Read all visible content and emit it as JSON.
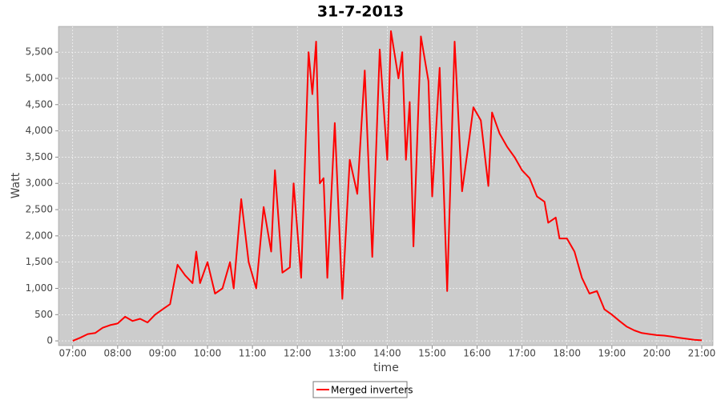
{
  "chart_data": {
    "type": "line",
    "title": "31-7-2013",
    "x_label": "time",
    "y_label": "Watt",
    "x": [
      "07:00",
      "07:10",
      "07:20",
      "07:30",
      "07:40",
      "07:50",
      "08:00",
      "08:10",
      "08:20",
      "08:30",
      "08:40",
      "08:50",
      "09:00",
      "09:10",
      "09:20",
      "09:30",
      "09:40",
      "09:45",
      "09:50",
      "10:00",
      "10:10",
      "10:20",
      "10:30",
      "10:35",
      "10:45",
      "10:55",
      "11:05",
      "11:15",
      "11:25",
      "11:30",
      "11:40",
      "11:50",
      "11:55",
      "12:05",
      "12:15",
      "12:20",
      "12:25",
      "12:30",
      "12:35",
      "12:40",
      "12:50",
      "13:00",
      "13:10",
      "13:20",
      "13:30",
      "13:40",
      "13:50",
      "14:00",
      "14:05",
      "14:15",
      "14:20",
      "14:25",
      "14:30",
      "14:35",
      "14:45",
      "14:55",
      "15:00",
      "15:10",
      "15:20",
      "15:30",
      "15:40",
      "15:50",
      "15:55",
      "16:05",
      "16:15",
      "16:20",
      "16:30",
      "16:40",
      "16:50",
      "17:00",
      "17:10",
      "17:20",
      "17:30",
      "17:35",
      "17:45",
      "17:50",
      "18:00",
      "18:10",
      "18:20",
      "18:30",
      "18:40",
      "18:50",
      "19:00",
      "19:10",
      "19:20",
      "19:30",
      "19:40",
      "19:50",
      "20:00",
      "20:10",
      "20:20",
      "20:30",
      "20:40",
      "20:50",
      "21:00"
    ],
    "series": [
      {
        "name": "Merged inverters",
        "color": "#ff0000",
        "values": [
          0,
          60,
          130,
          150,
          250,
          300,
          330,
          460,
          380,
          420,
          350,
          500,
          600,
          700,
          1450,
          1250,
          1100,
          1700,
          1100,
          1500,
          900,
          1000,
          1500,
          1000,
          2700,
          1500,
          1000,
          2550,
          1700,
          3250,
          1300,
          1400,
          3000,
          1200,
          5500,
          4700,
          5700,
          3000,
          3100,
          1200,
          4150,
          800,
          3450,
          2800,
          5150,
          1600,
          5550,
          3450,
          5900,
          5000,
          5500,
          3450,
          4550,
          1800,
          5800,
          4950,
          2750,
          5200,
          950,
          5700,
          2850,
          3900,
          4450,
          4200,
          2950,
          4350,
          3950,
          3700,
          3500,
          3250,
          3100,
          2750,
          2650,
          2250,
          2350,
          1950,
          1950,
          1700,
          1200,
          900,
          950,
          600,
          500,
          380,
          270,
          200,
          150,
          130,
          110,
          100,
          80,
          60,
          40,
          20,
          10
        ]
      }
    ],
    "xlim": [
      "06:41",
      "21:15"
    ],
    "xticks": [
      "07:00",
      "08:00",
      "09:00",
      "10:00",
      "11:00",
      "12:00",
      "13:00",
      "14:00",
      "15:00",
      "16:00",
      "17:00",
      "18:00",
      "19:00",
      "20:00",
      "21:00"
    ],
    "ylim": [
      -90,
      5990
    ],
    "yticks": [
      0,
      500,
      {
        "value": 1000,
        "label": "1,000"
      },
      {
        "value": 1500,
        "label": "1,500"
      },
      {
        "value": 2000,
        "label": "2,000"
      },
      {
        "value": 2500,
        "label": "2,500"
      },
      {
        "value": 3000,
        "label": "3,000"
      },
      {
        "value": 3500,
        "label": "3,500"
      },
      {
        "value": 4000,
        "label": "4,000"
      },
      {
        "value": 4500,
        "label": "4,500"
      },
      {
        "value": 5000,
        "label": "5,000"
      },
      {
        "value": 5500,
        "label": "5,500"
      }
    ],
    "grid": true
  }
}
